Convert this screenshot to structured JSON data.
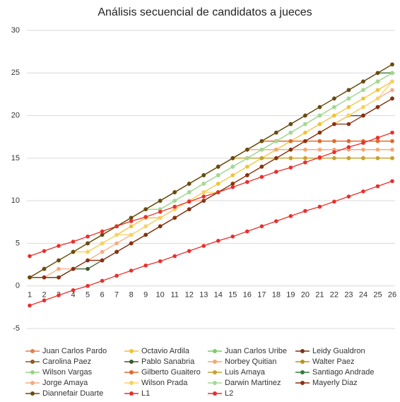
{
  "chart_data": {
    "type": "line",
    "title": "Análisis secuencial de candidatos a jueces",
    "categories": [
      "1",
      "2",
      "3",
      "4",
      "5",
      "6",
      "7",
      "8",
      "9",
      "10",
      "11",
      "12",
      "13",
      "14",
      "15",
      "16",
      "17",
      "18",
      "19",
      "20",
      "21",
      "22",
      "23",
      "24",
      "25",
      "26"
    ],
    "ylim": [
      -5,
      30
    ],
    "yticks": [
      -5,
      0,
      5,
      10,
      15,
      20,
      25,
      30
    ],
    "grid": true,
    "series": [
      {
        "name": "Juan Carlos Pardo",
        "color": "#e0804f",
        "values": [
          1,
          2,
          3,
          4,
          5,
          6,
          7,
          8,
          9,
          10,
          11,
          12,
          13,
          14,
          15,
          16,
          17,
          17,
          17,
          17,
          17,
          17,
          17,
          17,
          17,
          17
        ]
      },
      {
        "name": "Octavio Ardila",
        "color": "#f2c233",
        "values": [
          1,
          2,
          3,
          4,
          4,
          5,
          6,
          7,
          8,
          8,
          9,
          10,
          11,
          12,
          13,
          14,
          15,
          16,
          17,
          18,
          19,
          20,
          21,
          22,
          23,
          24
        ]
      },
      {
        "name": "Juan Carlos Uribe",
        "color": "#7fcc6a",
        "values": [
          1,
          2,
          3,
          4,
          5,
          6,
          7,
          8,
          9,
          9,
          10,
          11,
          12,
          13,
          14,
          15,
          16,
          17,
          18,
          19,
          20,
          21,
          22,
          23,
          24,
          25
        ]
      },
      {
        "name": "Leidy Gualdron",
        "color": "#7a3418",
        "values": [
          1,
          1,
          1,
          2,
          3,
          3,
          4,
          5,
          6,
          7,
          8,
          9,
          10,
          11,
          12,
          13,
          14,
          15,
          16,
          17,
          18,
          19,
          20,
          20,
          21,
          22
        ]
      },
      {
        "name": "Carolina Paez",
        "color": "#8a5a1c",
        "values": [
          1,
          2,
          3,
          4,
          5,
          6,
          7,
          8,
          9,
          10,
          11,
          12,
          13,
          14,
          15,
          16,
          17,
          18,
          19,
          20,
          21,
          22,
          23,
          24,
          25,
          26
        ]
      },
      {
        "name": "Pablo Sanabria",
        "color": "#3c5a2a",
        "values": [
          1,
          1,
          1,
          2,
          2,
          3,
          4,
          5,
          6,
          7,
          8,
          9,
          10,
          11,
          12,
          13,
          14,
          15,
          16,
          17,
          18,
          19,
          20,
          20,
          21,
          22
        ]
      },
      {
        "name": "Norbey Quitian",
        "color": "#f5a572",
        "values": [
          1,
          2,
          3,
          4,
          5,
          6,
          7,
          8,
          9,
          10,
          11,
          12,
          13,
          14,
          15,
          16,
          16,
          16,
          16,
          16,
          16,
          16,
          16,
          16,
          16,
          16
        ]
      },
      {
        "name": "Walter Paez",
        "color": "#b8941a",
        "values": [
          1,
          2,
          3,
          4,
          5,
          6,
          7,
          8,
          9,
          10,
          11,
          12,
          13,
          14,
          15,
          15,
          15,
          15,
          15,
          15,
          15,
          15,
          15,
          15,
          15,
          15
        ]
      },
      {
        "name": "Wilson Vargas",
        "color": "#95d488",
        "values": [
          1,
          2,
          3,
          4,
          5,
          6,
          7,
          8,
          9,
          9,
          10,
          11,
          12,
          13,
          14,
          15,
          16,
          17,
          18,
          19,
          20,
          21,
          22,
          23,
          24,
          25
        ]
      },
      {
        "name": "Gilberto Guaitero",
        "color": "#e2692a",
        "values": [
          1,
          2,
          3,
          4,
          5,
          6,
          7,
          8,
          9,
          10,
          11,
          12,
          13,
          14,
          15,
          16,
          17,
          17,
          17,
          17,
          17,
          17,
          17,
          17,
          17,
          17
        ]
      },
      {
        "name": "Luis Amaya",
        "color": "#c8a02e",
        "values": [
          1,
          2,
          3,
          4,
          5,
          6,
          7,
          8,
          9,
          10,
          11,
          12,
          13,
          14,
          15,
          15,
          15,
          15,
          15,
          15,
          15,
          15,
          15,
          15,
          15,
          15
        ]
      },
      {
        "name": "Santiago Andrade",
        "color": "#3a7a3a",
        "values": [
          1,
          2,
          3,
          4,
          5,
          6,
          7,
          8,
          9,
          10,
          11,
          12,
          13,
          14,
          15,
          16,
          17,
          18,
          19,
          20,
          21,
          22,
          23,
          24,
          25,
          25
        ]
      },
      {
        "name": "Jorge Amaya",
        "color": "#f6ab80",
        "values": [
          1,
          1,
          2,
          2,
          3,
          4,
          5,
          6,
          7,
          8,
          9,
          10,
          10,
          11,
          12,
          13,
          14,
          15,
          16,
          17,
          18,
          19,
          20,
          21,
          22,
          23
        ]
      },
      {
        "name": "Wilson Prada",
        "color": "#f8d160",
        "values": [
          1,
          2,
          3,
          4,
          4,
          5,
          6,
          6,
          7,
          8,
          9,
          10,
          11,
          11,
          12,
          13,
          14,
          15,
          16,
          17,
          18,
          19,
          20,
          21,
          22,
          24
        ]
      },
      {
        "name": "Darwin Martinez",
        "color": "#a3d894",
        "values": [
          1,
          2,
          3,
          4,
          5,
          6,
          7,
          8,
          9,
          9,
          10,
          11,
          12,
          13,
          14,
          15,
          16,
          17,
          18,
          19,
          20,
          21,
          22,
          23,
          24,
          25
        ]
      },
      {
        "name": "Mayerly Diaz",
        "color": "#8a3010",
        "values": [
          1,
          1,
          1,
          2,
          3,
          3,
          4,
          5,
          6,
          7,
          8,
          9,
          10,
          11,
          12,
          13,
          14,
          15,
          16,
          17,
          18,
          19,
          19,
          20,
          21,
          22
        ]
      },
      {
        "name": "Diannefair Duarte",
        "color": "#6b4a10",
        "values": [
          1,
          2,
          3,
          4,
          5,
          6,
          7,
          8,
          9,
          10,
          11,
          12,
          13,
          14,
          15,
          16,
          17,
          18,
          19,
          20,
          21,
          22,
          23,
          24,
          25,
          26
        ]
      },
      {
        "name": "L1",
        "color": "#e8302c",
        "values": [
          3.5,
          4.1,
          4.7,
          5.2,
          5.8,
          6.4,
          7,
          7.6,
          8.1,
          8.7,
          9.3,
          9.9,
          10.5,
          11,
          11.6,
          12.2,
          12.8,
          13.4,
          13.9,
          14.5,
          15.1,
          15.7,
          16.3,
          16.8,
          17.4,
          18
        ]
      },
      {
        "name": "L2",
        "color": "#e8302c",
        "values": [
          -2.3,
          -1.7,
          -1.1,
          -0.5,
          0,
          0.6,
          1.2,
          1.8,
          2.4,
          2.9,
          3.5,
          4.1,
          4.7,
          5.3,
          5.8,
          6.4,
          7,
          7.6,
          8.2,
          8.8,
          9.3,
          9.9,
          10.5,
          11.1,
          11.7,
          12.3
        ]
      }
    ]
  }
}
